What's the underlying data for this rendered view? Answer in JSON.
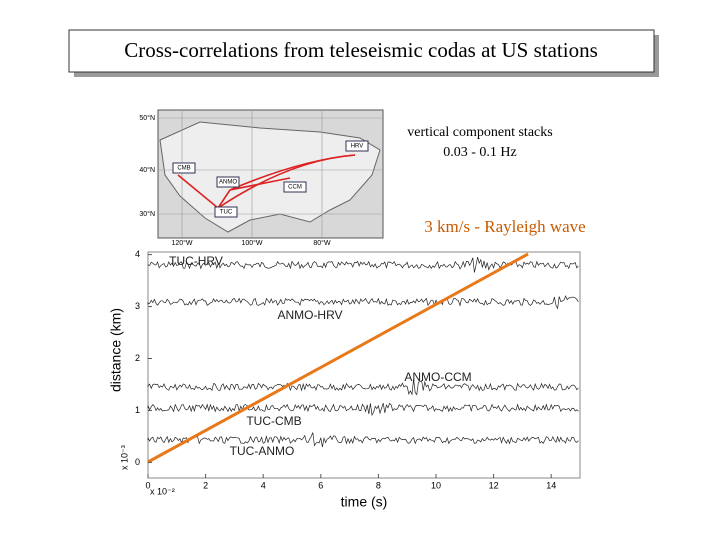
{
  "slide": {
    "title": "Cross-correlations from teleseismic codas at US stations",
    "annotations": {
      "stacks": "vertical component stacks",
      "band": "0.03 - 0.1 Hz",
      "velocity": "3 km/s - Rayleigh wave"
    }
  },
  "map": {
    "lat_labels": [
      "50°N",
      "40°N",
      "30°N"
    ],
    "lon_labels": [
      "120°W",
      "100°W",
      "80°W"
    ],
    "stations": [
      "HRV",
      "CMB",
      "ANMO",
      "CCM",
      "TUC"
    ]
  },
  "figure": {
    "xlabel": "time (s)",
    "ylabel": "distance (km)",
    "x_scale": "x 10⁻²",
    "y_scale": "x 10⁻³",
    "xlim": [
      0,
      15
    ],
    "ylim": [
      -0.3,
      4.05
    ],
    "xticks": [
      0,
      2,
      4,
      6,
      8,
      10,
      12,
      14
    ],
    "yticks": [
      0,
      1,
      2,
      3,
      4
    ],
    "traces": [
      "TUC-HRV",
      "ANMO-HRV",
      "ANMO-CCM",
      "TUC-CMB",
      "TUC-ANMO"
    ]
  }
}
